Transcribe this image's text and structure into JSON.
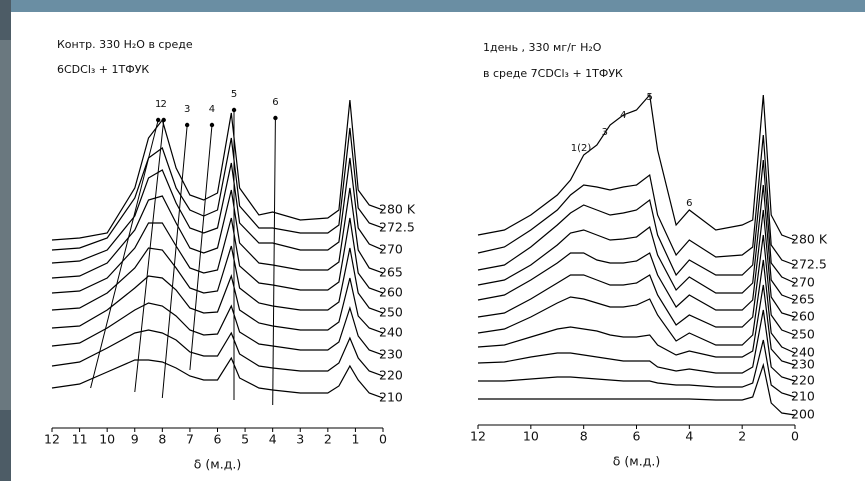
{
  "chart_data": [
    {
      "type": "line",
      "title": "Контр. 330 H₂O в среде",
      "subtitle": "6CDCl₃ + 1ТФУК",
      "x_label": "δ (м.д.)",
      "x": [
        12,
        11,
        10,
        9,
        8.5,
        8,
        7.5,
        7,
        6.5,
        6,
        5.5,
        5.2,
        4.5,
        4,
        3,
        2,
        1.6,
        1.2,
        0.9,
        0.5,
        0
      ],
      "xlim": [
        12,
        0
      ],
      "xticks": [
        12,
        11,
        10,
        9,
        8,
        7,
        6,
        5,
        4,
        3,
        2,
        1,
        0
      ],
      "ylim": [
        0,
        360
      ],
      "series": [
        {
          "name": "280 K",
          "color": "#000000",
          "values": [
            188,
            190,
            195,
            240,
            290,
            308,
            260,
            233,
            228,
            235,
            315,
            240,
            213,
            216,
            208,
            210,
            218,
            328,
            238,
            223,
            218
          ]
        },
        {
          "name": "272.5",
          "color": "#000000",
          "values": [
            178,
            180,
            190,
            230,
            270,
            280,
            240,
            218,
            212,
            218,
            290,
            222,
            200,
            200,
            195,
            195,
            203,
            300,
            220,
            205,
            200
          ]
        },
        {
          "name": "270",
          "color": "#000000",
          "values": [
            165,
            167,
            178,
            212,
            250,
            258,
            225,
            200,
            195,
            200,
            265,
            205,
            185,
            185,
            178,
            178,
            186,
            270,
            200,
            184,
            178
          ]
        },
        {
          "name": "265",
          "color": "#000000",
          "values": [
            150,
            152,
            165,
            198,
            228,
            232,
            205,
            180,
            175,
            180,
            238,
            185,
            165,
            163,
            158,
            158,
            166,
            240,
            178,
            160,
            155
          ]
        },
        {
          "name": "260",
          "color": "#000000",
          "values": [
            135,
            137,
            150,
            180,
            205,
            205,
            182,
            160,
            155,
            158,
            210,
            162,
            145,
            143,
            138,
            138,
            146,
            210,
            155,
            140,
            135
          ]
        },
        {
          "name": "250",
          "color": "#000000",
          "values": [
            118,
            120,
            135,
            160,
            180,
            178,
            160,
            140,
            135,
            137,
            182,
            140,
            125,
            122,
            118,
            118,
            126,
            180,
            135,
            120,
            115
          ]
        },
        {
          "name": "240",
          "color": "#000000",
          "values": [
            100,
            102,
            118,
            140,
            152,
            150,
            138,
            120,
            115,
            116,
            152,
            118,
            105,
            102,
            98,
            98,
            106,
            150,
            112,
            100,
            95
          ]
        },
        {
          "name": "230",
          "color": "#000000",
          "values": [
            82,
            85,
            100,
            118,
            125,
            122,
            112,
            98,
            93,
            94,
            122,
            96,
            84,
            82,
            78,
            78,
            86,
            120,
            92,
            78,
            73
          ]
        },
        {
          "name": "220",
          "color": "#000000",
          "values": [
            62,
            66,
            80,
            95,
            98,
            95,
            88,
            76,
            72,
            72,
            95,
            74,
            62,
            60,
            57,
            57,
            65,
            90,
            70,
            57,
            52
          ]
        },
        {
          "name": "210",
          "color": "#000000",
          "values": [
            40,
            44,
            56,
            68,
            68,
            66,
            60,
            52,
            48,
            48,
            70,
            50,
            40,
            38,
            35,
            35,
            42,
            62,
            48,
            35,
            30
          ]
        }
      ],
      "tracks": [
        {
          "label": "1",
          "x": [
            10.6,
            8.15
          ],
          "y": [
            40,
            308
          ]
        },
        {
          "label": "2",
          "x": [
            9.0,
            7.95
          ],
          "y": [
            36,
            308
          ]
        },
        {
          "label": "3",
          "x": [
            8.0,
            7.1
          ],
          "y": [
            30,
            303
          ]
        },
        {
          "label": "4",
          "x": [
            7.0,
            6.2
          ],
          "y": [
            58,
            303
          ]
        },
        {
          "label": "5",
          "x": [
            5.4,
            5.4
          ],
          "y": [
            28,
            318
          ]
        },
        {
          "label": "6",
          "x": [
            4.0,
            3.9
          ],
          "y": [
            23,
            310
          ]
        }
      ]
    },
    {
      "type": "line",
      "title": "1день , 330 мг/г H₂O",
      "subtitle": "в среде 7CDCl₃ + 1ТФУК",
      "x_label": "δ (м.д.)",
      "x": [
        12,
        11,
        10,
        9,
        8.5,
        8,
        7.5,
        7,
        6.5,
        6,
        5.5,
        5.2,
        4.5,
        4,
        3,
        2,
        1.6,
        1.2,
        0.9,
        0.5,
        0
      ],
      "xlim": [
        12,
        0
      ],
      "xticks": [
        12,
        10,
        8,
        6,
        4,
        2,
        0
      ],
      "ylim": [
        0,
        360
      ],
      "series": [
        {
          "name": "280 K",
          "color": "#000000",
          "values": [
            190,
            195,
            210,
            230,
            245,
            270,
            280,
            300,
            310,
            315,
            330,
            275,
            200,
            215,
            195,
            200,
            205,
            330,
            210,
            190,
            185
          ]
        },
        {
          "name": "272.5",
          "color": "#000000",
          "values": [
            172,
            178,
            195,
            215,
            230,
            240,
            238,
            235,
            238,
            240,
            250,
            210,
            170,
            185,
            168,
            170,
            178,
            290,
            180,
            165,
            160
          ]
        },
        {
          "name": "270",
          "color": "#000000",
          "values": [
            155,
            160,
            178,
            200,
            212,
            220,
            215,
            210,
            212,
            215,
            225,
            190,
            150,
            165,
            150,
            150,
            160,
            265,
            162,
            148,
            142
          ]
        },
        {
          "name": "265",
          "color": "#000000",
          "values": [
            140,
            145,
            160,
            180,
            192,
            195,
            190,
            185,
            186,
            188,
            198,
            170,
            135,
            148,
            132,
            132,
            142,
            240,
            145,
            130,
            125
          ]
        },
        {
          "name": "260",
          "color": "#000000",
          "values": [
            125,
            130,
            145,
            162,
            172,
            172,
            165,
            162,
            162,
            164,
            172,
            150,
            118,
            130,
            115,
            115,
            125,
            215,
            128,
            112,
            108
          ]
        },
        {
          "name": "250",
          "color": "#000000",
          "values": [
            108,
            112,
            126,
            142,
            150,
            150,
            145,
            140,
            140,
            142,
            150,
            130,
            100,
            110,
            98,
            98,
            108,
            190,
            110,
            95,
            90
          ]
        },
        {
          "name": "240",
          "color": "#000000",
          "values": [
            92,
            96,
            108,
            122,
            128,
            126,
            122,
            118,
            118,
            120,
            126,
            110,
            84,
            92,
            80,
            80,
            90,
            165,
            92,
            78,
            72
          ]
        },
        {
          "name": "230",
          "color": "#000000",
          "values": [
            78,
            80,
            88,
            96,
            98,
            96,
            94,
            90,
            88,
            88,
            90,
            80,
            70,
            74,
            68,
            68,
            74,
            140,
            76,
            64,
            60
          ]
        },
        {
          "name": "220",
          "color": "#000000",
          "values": [
            62,
            63,
            68,
            72,
            72,
            70,
            68,
            66,
            64,
            64,
            64,
            58,
            54,
            56,
            52,
            52,
            58,
            115,
            58,
            48,
            44
          ]
        },
        {
          "name": "210",
          "color": "#000000",
          "values": [
            44,
            44,
            46,
            48,
            48,
            47,
            46,
            45,
            44,
            44,
            44,
            42,
            40,
            40,
            38,
            38,
            42,
            85,
            40,
            32,
            28
          ]
        },
        {
          "name": "200",
          "color": "#000000",
          "values": [
            26,
            26,
            26,
            26,
            26,
            26,
            26,
            26,
            26,
            26,
            26,
            26,
            26,
            26,
            25,
            25,
            28,
            60,
            22,
            12,
            10
          ]
        }
      ],
      "annotations": [
        {
          "text": "1(2)",
          "x": 8.1,
          "y": 277
        },
        {
          "text": "3",
          "x": 7.2,
          "y": 293
        },
        {
          "text": "4",
          "x": 6.5,
          "y": 310
        },
        {
          "text": "5",
          "x": 5.5,
          "y": 328
        },
        {
          "text": "6",
          "x": 4.0,
          "y": 222
        }
      ]
    }
  ]
}
